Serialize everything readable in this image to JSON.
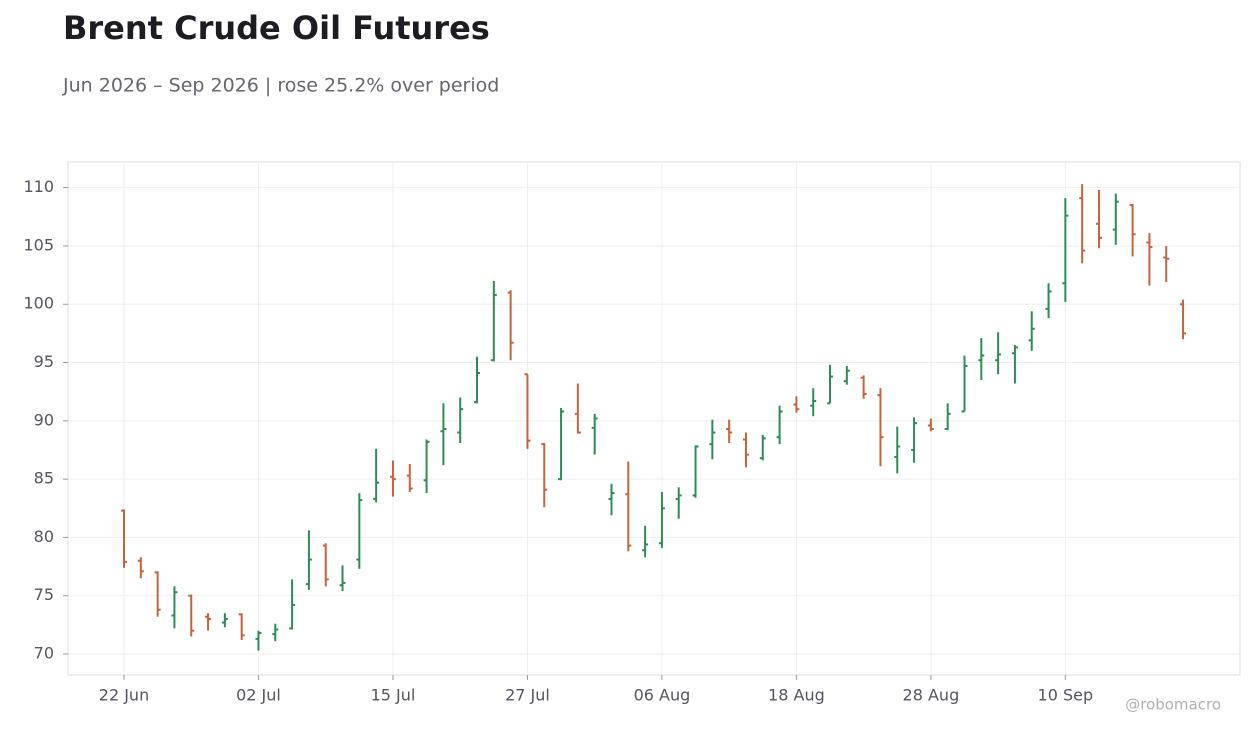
{
  "chart_data": {
    "type": "ohlc",
    "title": "Brent Crude Oil Futures",
    "subtitle": "Jun 2026 – Sep 2026 | rose 25.2% over period",
    "watermark": "@robomacro",
    "categories": [
      "22 Jun",
      null,
      null,
      null,
      null,
      null,
      null,
      null,
      "02 Jul",
      null,
      null,
      null,
      null,
      null,
      null,
      null,
      "15 Jul",
      null,
      null,
      null,
      null,
      null,
      null,
      null,
      "27 Jul",
      null,
      null,
      null,
      null,
      null,
      null,
      null,
      "06 Aug",
      null,
      null,
      null,
      null,
      null,
      null,
      null,
      "18 Aug",
      null,
      null,
      null,
      null,
      null,
      null,
      null,
      "28 Aug",
      null,
      null,
      null,
      null,
      null,
      null,
      null,
      "10 Sep",
      null,
      null,
      null,
      null,
      null,
      null,
      null
    ],
    "open": [
      82.3,
      78.0,
      77.0,
      73.3,
      75.0,
      73.2,
      72.7,
      73.4,
      71.3,
      71.7,
      72.2,
      76.0,
      79.3,
      75.9,
      78.1,
      83.3,
      85.2,
      85.3,
      84.9,
      89.1,
      89.0,
      91.6,
      95.2,
      101.0,
      94.0,
      88.0,
      85.0,
      90.6,
      89.4,
      83.3,
      83.7,
      78.9,
      79.5,
      83.3,
      83.6,
      88.0,
      89.3,
      88.4,
      86.8,
      88.6,
      91.4,
      91.3,
      91.5,
      93.4,
      93.7,
      92.2,
      86.9,
      87.5,
      89.6,
      89.3,
      90.8,
      95.2,
      95.2,
      95.8,
      96.9,
      99.6,
      101.8,
      109.1,
      106.9,
      106.4,
      108.5,
      105.3,
      104.0,
      100.0
    ],
    "high": [
      82.4,
      78.3,
      77.1,
      75.8,
      75.1,
      73.5,
      73.5,
      73.5,
      72.0,
      72.6,
      76.4,
      80.6,
      79.5,
      77.6,
      83.8,
      87.6,
      86.6,
      86.3,
      88.4,
      91.5,
      92.0,
      95.5,
      102.0,
      101.2,
      94.0,
      88.1,
      91.1,
      93.2,
      90.6,
      84.6,
      86.5,
      81.0,
      83.9,
      84.3,
      87.9,
      90.1,
      90.1,
      89.0,
      88.8,
      91.3,
      92.1,
      92.8,
      94.8,
      94.7,
      93.9,
      92.8,
      89.5,
      90.3,
      90.2,
      91.5,
      95.6,
      97.1,
      97.6,
      96.5,
      99.4,
      101.8,
      109.1,
      110.3,
      109.8,
      109.5,
      108.6,
      106.1,
      105.0,
      100.4
    ],
    "low": [
      77.4,
      76.5,
      73.2,
      72.2,
      71.5,
      72.0,
      72.3,
      71.2,
      70.3,
      71.1,
      72.1,
      75.5,
      75.8,
      75.4,
      77.3,
      83.0,
      83.5,
      83.9,
      83.8,
      86.2,
      88.1,
      91.5,
      95.1,
      95.2,
      87.6,
      82.6,
      84.9,
      88.9,
      87.1,
      81.9,
      78.8,
      78.3,
      79.1,
      81.6,
      83.4,
      86.7,
      88.1,
      86.0,
      86.6,
      88.0,
      90.7,
      90.4,
      91.5,
      93.1,
      91.9,
      86.1,
      85.5,
      86.4,
      89.1,
      89.2,
      90.8,
      93.5,
      94.0,
      93.2,
      96.0,
      98.8,
      100.2,
      103.5,
      104.8,
      105.1,
      104.1,
      101.6,
      101.9,
      97.0
    ],
    "close": [
      77.9,
      77.1,
      73.8,
      75.3,
      72.0,
      73.0,
      73.0,
      71.6,
      71.8,
      72.1,
      74.2,
      78.1,
      76.4,
      76.1,
      83.2,
      84.7,
      85.0,
      84.2,
      88.2,
      89.3,
      91.0,
      94.1,
      100.8,
      96.7,
      88.3,
      84.1,
      90.8,
      89.0,
      90.2,
      83.8,
      79.3,
      79.4,
      82.5,
      83.6,
      87.8,
      89.0,
      89.0,
      87.1,
      88.5,
      90.8,
      91.0,
      91.7,
      93.8,
      94.3,
      92.3,
      88.6,
      87.8,
      89.8,
      89.3,
      90.6,
      94.7,
      95.6,
      95.7,
      96.3,
      97.9,
      101.1,
      107.6,
      104.6,
      105.7,
      108.8,
      106.0,
      104.9,
      103.9,
      97.5
    ],
    "up_color": "#2e8b57",
    "down_color": "#c8623c",
    "ylim": [
      68.2,
      112.2
    ],
    "yticks": [
      70,
      75,
      80,
      85,
      90,
      95,
      100,
      105,
      110
    ],
    "grid": true
  }
}
